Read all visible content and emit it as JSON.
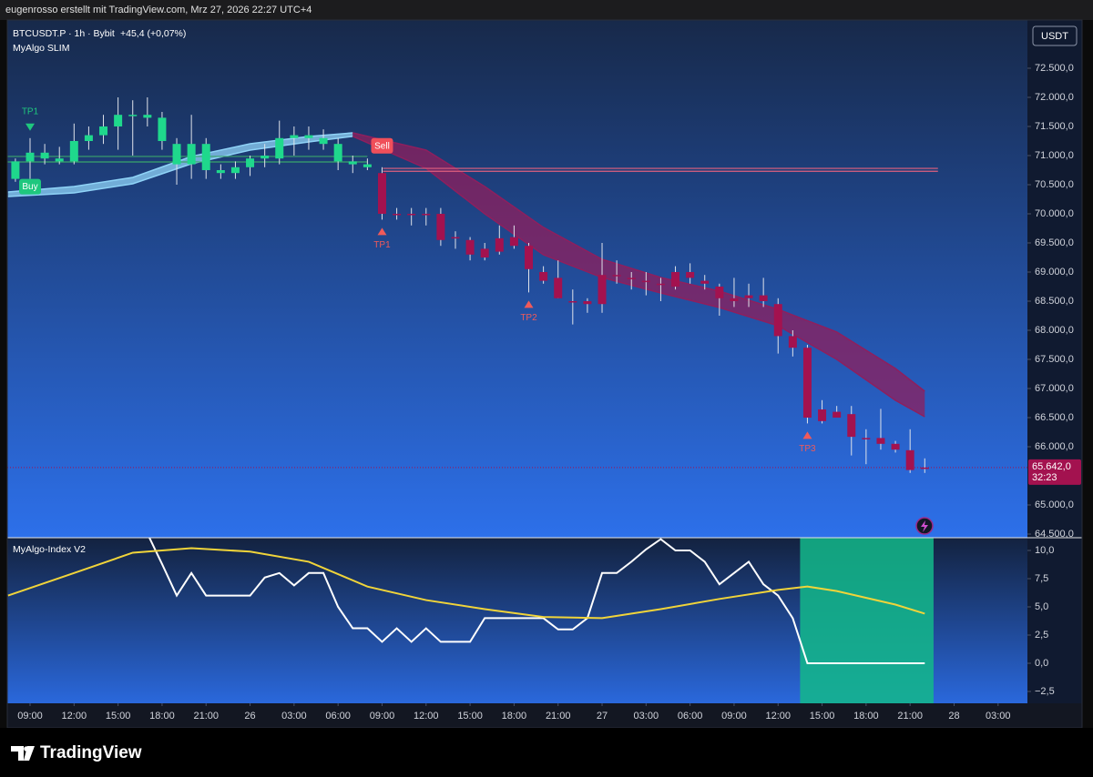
{
  "header": {
    "text": "eugenrosso erstellt mit TradingView.com, Mrz 27, 2026 22:27 UTC+4"
  },
  "legend": {
    "symbol": "BTCUSDT.P · 1h · Bybit",
    "change": "+45,4 (+0,07%)",
    "indicator": "MyAlgo SLIM"
  },
  "currency": "USDT",
  "footer": {
    "logo": "TradingView"
  },
  "chart_data": [
    {
      "type": "candlestick",
      "xlim": [
        7.447,
        77.0
      ],
      "ylim": [
        64437.5,
        73328
      ],
      "yticks": [
        {
          "value": 72500,
          "label": "72.500,0"
        },
        {
          "value": 72000,
          "label": "72.000,0"
        },
        {
          "value": 71500,
          "label": "71.500,0"
        },
        {
          "value": 71000,
          "label": "71.000,0"
        },
        {
          "value": 70500,
          "label": "70.500,0"
        },
        {
          "value": 70000,
          "label": "70.000,0"
        },
        {
          "value": 69500,
          "label": "69.500,0"
        },
        {
          "value": 69000,
          "label": "69.000,0"
        },
        {
          "value": 68500,
          "label": "68.500,0"
        },
        {
          "value": 68000,
          "label": "68.000,0"
        },
        {
          "value": 67500,
          "label": "67.500,0"
        },
        {
          "value": 67000,
          "label": "67.000,0"
        },
        {
          "value": 66500,
          "label": "66.500,0"
        },
        {
          "value": 66000,
          "label": "66.000,0"
        },
        {
          "value": 65000,
          "label": "65.000,0"
        },
        {
          "value": 64500,
          "label": "64.500,0"
        }
      ],
      "series": [
        {
          "color": "#1fd88c",
          "x": [
            8,
            9,
            10,
            11,
            12,
            13,
            14,
            15,
            16,
            17,
            18,
            19,
            20,
            21,
            22,
            23,
            24,
            25,
            26,
            27,
            28,
            29,
            30,
            31,
            32
          ],
          "open": [
            70600,
            70900,
            71050,
            70950,
            70900,
            71250,
            71350,
            71500,
            71700,
            71700,
            71650,
            71200,
            70850,
            71200,
            70750,
            70700,
            70800,
            70950,
            70950,
            71300,
            71350,
            71300,
            71200,
            70900,
            70850
          ],
          "high": [
            70950,
            71300,
            71200,
            71150,
            71550,
            71500,
            71700,
            72000,
            71950,
            72000,
            71750,
            71300,
            71700,
            71300,
            70850,
            70900,
            71000,
            71200,
            71600,
            71500,
            71500,
            71450,
            71300,
            71000,
            70950
          ],
          "low": [
            70550,
            70600,
            70850,
            70850,
            70850,
            71100,
            71200,
            71100,
            71000,
            71500,
            71100,
            70500,
            70600,
            70600,
            70600,
            70600,
            70650,
            70800,
            70850,
            71000,
            71100,
            71100,
            70750,
            70700,
            70750
          ],
          "close": [
            70900,
            71050,
            70950,
            70900,
            71250,
            71350,
            71500,
            71700,
            71700,
            71650,
            71250,
            70850,
            71200,
            70750,
            70700,
            70800,
            70950,
            71000,
            71300,
            71350,
            71300,
            71200,
            70900,
            70850,
            70800
          ]
        },
        {
          "color": "#a3124f",
          "x": [
            33,
            34,
            35,
            36,
            37,
            38,
            39,
            40,
            41,
            42,
            43,
            44,
            45,
            46,
            47,
            48,
            49,
            50,
            51,
            52,
            53,
            54,
            55,
            56,
            57,
            58,
            59,
            60,
            61,
            62,
            63,
            64,
            65,
            66,
            67,
            68,
            69,
            70
          ],
          "open": [
            70700,
            70000,
            70000,
            70000,
            70000,
            69600,
            69550,
            69400,
            69350,
            69600,
            69450,
            69000,
            68900,
            68500,
            68450,
            68450,
            68950,
            68900,
            68850,
            68800,
            68750,
            69000,
            68850,
            68750,
            68550,
            68600,
            68600,
            68450,
            67900,
            67700,
            66640,
            66600,
            66560,
            66150,
            66150,
            66050,
            65940,
            65620
          ],
          "high": [
            70800,
            70100,
            70100,
            70100,
            70100,
            69700,
            69600,
            69500,
            69800,
            69800,
            69500,
            69100,
            69200,
            68700,
            68550,
            69500,
            69200,
            69000,
            69000,
            68900,
            69100,
            69150,
            68950,
            68800,
            68900,
            68800,
            68900,
            68550,
            68000,
            67750,
            66800,
            66700,
            66700,
            66300,
            66650,
            66100,
            66300,
            65800
          ],
          "low": [
            69900,
            69900,
            69800,
            69800,
            69450,
            69400,
            69200,
            69200,
            69300,
            69400,
            68650,
            68800,
            68550,
            68100,
            68300,
            68300,
            68800,
            68700,
            68600,
            68500,
            68700,
            68800,
            68700,
            68250,
            68400,
            68400,
            68400,
            67600,
            67550,
            66400,
            66400,
            66500,
            65850,
            65700,
            65950,
            65900,
            65550,
            65550
          ],
          "close": [
            70000,
            70000,
            70000,
            70000,
            69550,
            69600,
            69300,
            69250,
            69580,
            69450,
            69050,
            68850,
            68550,
            68500,
            68500,
            68950,
            68950,
            68900,
            68850,
            68800,
            69000,
            68900,
            68800,
            68550,
            68500,
            68550,
            68500,
            67900,
            67700,
            66500,
            66440,
            66500,
            66170,
            66150,
            66050,
            65950,
            65600,
            65642
          ]
        }
      ],
      "bands": [
        {
          "color": "#8fd3f7",
          "x": [
            7.5,
            12,
            16,
            20,
            24,
            28,
            31
          ],
          "upper": [
            70375,
            70469,
            70625,
            70984,
            71203,
            71328,
            71390
          ],
          "lower": [
            70297,
            70359,
            70516,
            70859,
            71094,
            71234,
            71330
          ]
        },
        {
          "color": "#8e1f5e",
          "x": [
            31,
            36,
            40,
            44,
            48,
            52,
            56,
            60,
            64,
            68,
            70
          ],
          "upper": [
            71390,
            71094,
            70469,
            69766,
            69219,
            68906,
            68672,
            68359,
            67969,
            67344,
            66953
          ],
          "lower": [
            71330,
            70781,
            70000,
            69297,
            68906,
            68641,
            68391,
            68078,
            67500,
            66797,
            66516
          ]
        }
      ],
      "levels": [
        {
          "value": 70985,
          "x": [
            7.45,
            32.0
          ],
          "color": "#3aa56b"
        },
        {
          "value": 70890,
          "x": [
            7.45,
            32.0
          ],
          "color": "#3aa56b"
        },
        {
          "value": 70780,
          "x": [
            33.06,
            70.9
          ],
          "color": "#e0607e"
        },
        {
          "value": 70730,
          "x": [
            33.06,
            70.9
          ],
          "color": "#e0607e"
        }
      ],
      "signals": [
        {
          "label": "TP1",
          "x": 9,
          "position": "above",
          "style": "triangle",
          "color": "#1fc77e"
        },
        {
          "label": "Buy",
          "x": 9,
          "position": "below",
          "style": "box",
          "color": "#1fc77e"
        },
        {
          "label": "Sell",
          "x": 33,
          "position": "above",
          "style": "box",
          "color": "#f04f5a"
        },
        {
          "label": "TP1",
          "x": 33,
          "position": "below",
          "style": "triangle",
          "color": "#f05a5a"
        },
        {
          "label": "TP2",
          "x": 43,
          "position": "below",
          "style": "triangle",
          "color": "#f05a5a"
        },
        {
          "label": "TP3",
          "x": 62,
          "position": "below",
          "style": "triangle",
          "color": "#f05a5a"
        }
      ],
      "last_price": {
        "value": 65642,
        "label": "65.642,0",
        "countdown": "32:23",
        "color": "#a3124f"
      }
    },
    {
      "type": "line",
      "title": "MyAlgo-Index V2",
      "xlim": [
        7.447,
        77.0
      ],
      "ylim": [
        -3.55,
        11.13
      ],
      "yticks": [
        {
          "value": 10,
          "label": "10,0"
        },
        {
          "value": 7.5,
          "label": "7,5"
        },
        {
          "value": 5,
          "label": "5,0"
        },
        {
          "value": 2.5,
          "label": "2,5"
        },
        {
          "value": 0,
          "label": "0,0"
        },
        {
          "value": -2.5,
          "label": "−2,5"
        }
      ],
      "xticks": [
        {
          "value": 9,
          "label": "09:00"
        },
        {
          "value": 12,
          "label": "12:00"
        },
        {
          "value": 15,
          "label": "15:00"
        },
        {
          "value": 18,
          "label": "18:00"
        },
        {
          "value": 21,
          "label": "21:00"
        },
        {
          "value": 24,
          "label": "26"
        },
        {
          "value": 27,
          "label": "03:00"
        },
        {
          "value": 30,
          "label": "06:00"
        },
        {
          "value": 33,
          "label": "09:00"
        },
        {
          "value": 36,
          "label": "12:00"
        },
        {
          "value": 39,
          "label": "15:00"
        },
        {
          "value": 42,
          "label": "18:00"
        },
        {
          "value": 45,
          "label": "21:00"
        },
        {
          "value": 48,
          "label": "27"
        },
        {
          "value": 51,
          "label": "03:00"
        },
        {
          "value": 54,
          "label": "06:00"
        },
        {
          "value": 57,
          "label": "09:00"
        },
        {
          "value": 60,
          "label": "12:00"
        },
        {
          "value": 63,
          "label": "15:00"
        },
        {
          "value": 66,
          "label": "18:00"
        },
        {
          "value": 69,
          "label": "21:00"
        },
        {
          "value": 72,
          "label": "28"
        },
        {
          "value": 75,
          "label": "03:00"
        }
      ],
      "zone": {
        "x": [
          61.5,
          70.6
        ],
        "color": "#13b88a"
      },
      "series": [
        {
          "color": "#ffffff",
          "x": [
            17,
            18,
            19,
            20,
            21,
            22,
            23,
            24,
            25,
            26,
            27,
            28,
            29,
            30,
            31,
            32,
            33,
            34,
            35,
            36,
            37,
            38,
            39,
            40,
            41,
            42,
            43,
            44,
            45,
            46,
            47,
            48,
            49,
            50,
            51,
            52,
            53,
            54,
            55,
            56,
            57,
            58,
            59,
            60,
            61,
            62,
            63,
            64,
            65,
            66,
            67,
            68,
            69,
            70
          ],
          "values": [
            11.5,
            8.8,
            6.0,
            8.0,
            6.0,
            6.0,
            6.0,
            6.0,
            7.6,
            8.0,
            6.9,
            8.0,
            8.0,
            5.0,
            3.1,
            3.1,
            1.9,
            3.1,
            1.9,
            3.1,
            1.9,
            1.9,
            1.9,
            4.0,
            4.0,
            4.0,
            4.0,
            4.0,
            3.0,
            3.0,
            4.0,
            8.0,
            8.0,
            9.0,
            10.1,
            11.0,
            10.0,
            10.0,
            9.0,
            7.0,
            8.0,
            9.0,
            7.0,
            6.0,
            4.0,
            0,
            0,
            0,
            0,
            0,
            0,
            0,
            0,
            0
          ]
        },
        {
          "color": "#f0d43a",
          "x": [
            7.5,
            12,
            16,
            20,
            24,
            28,
            32,
            36,
            40,
            44,
            48,
            52,
            56,
            60,
            62,
            64,
            68,
            70
          ],
          "values": [
            6.0,
            8.0,
            9.8,
            10.2,
            9.9,
            9.0,
            6.8,
            5.6,
            4.8,
            4.1,
            4.0,
            4.8,
            5.7,
            6.5,
            6.8,
            6.4,
            5.2,
            4.4
          ]
        }
      ]
    }
  ]
}
